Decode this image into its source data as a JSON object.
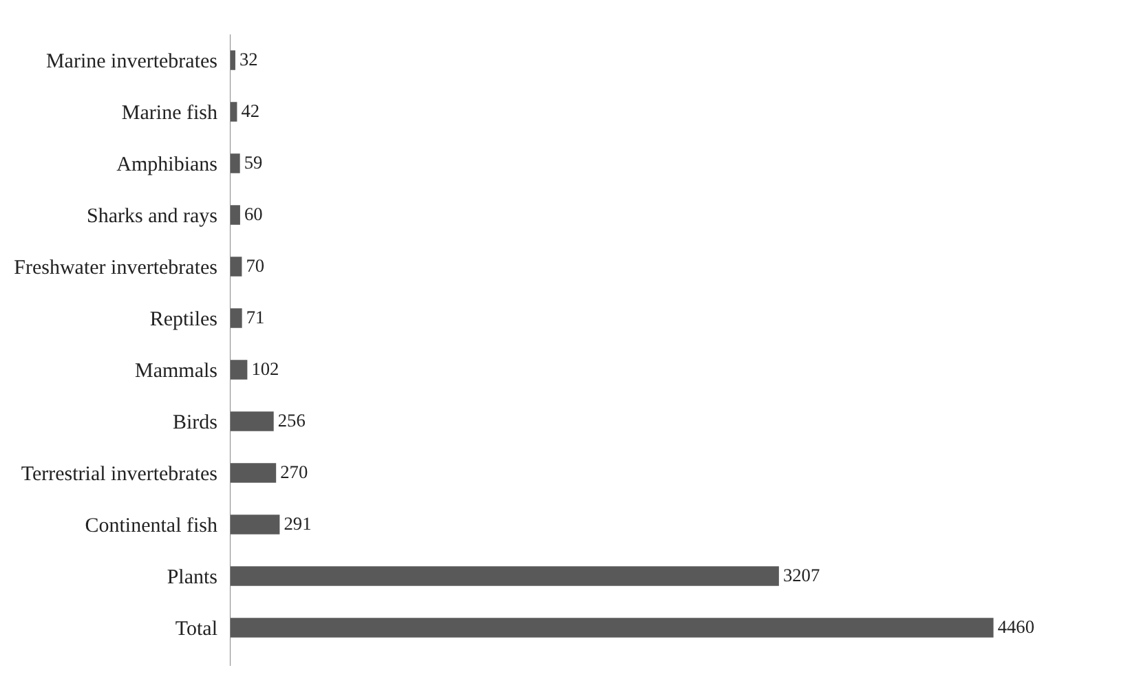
{
  "chart_data": {
    "type": "bar",
    "orientation": "horizontal",
    "categories": [
      "Marine invertebrates",
      "Marine fish",
      "Amphibians",
      "Sharks and rays",
      "Freshwater invertebrates",
      "Reptiles",
      "Mammals",
      "Birds",
      "Terrestrial invertebrates",
      "Continental fish",
      "Plants",
      "Total"
    ],
    "values": [
      32,
      42,
      59,
      60,
      70,
      71,
      102,
      256,
      270,
      291,
      3207,
      4460
    ],
    "color": "#595959",
    "data_labels": true,
    "legend": false,
    "tick_labels": "y"
  }
}
